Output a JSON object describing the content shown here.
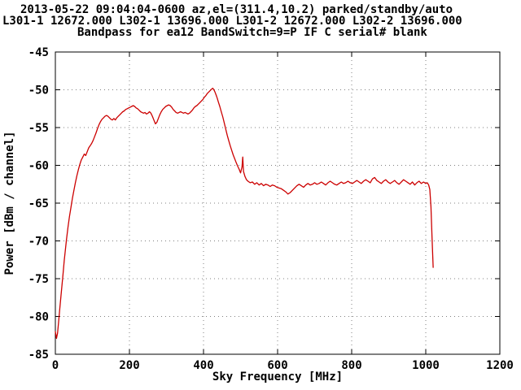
{
  "header": {
    "line1": "2013-05-22 09:04:04-0600  az,el=(311.4,10.2) parked/standby/auto",
    "line2": "L301-1 12672.000  L302-1 13696.000  L301-2 12672.000  L302-2 13696.000",
    "line3": "Bandpass for ea12  BandSwitch=9=P  IF C  serial# blank"
  },
  "chart_data": {
    "type": "line",
    "title": "Bandpass for ea12",
    "xlabel": "Sky Frequency [MHz]",
    "ylabel": "Power [dBm / channel]",
    "xlim": [
      0,
      1200
    ],
    "ylim": [
      -85,
      -45
    ],
    "xticks": [
      0,
      200,
      400,
      600,
      800,
      1000,
      1200
    ],
    "yticks": [
      -85,
      -80,
      -75,
      -70,
      -65,
      -60,
      -55,
      -50,
      -45
    ],
    "grid": true,
    "legend": "none",
    "line_color": "#cc0000",
    "points": [
      [
        0,
        -82
      ],
      [
        3,
        -82.9
      ],
      [
        6,
        -82.2
      ],
      [
        9,
        -80.6
      ],
      [
        12,
        -78.9
      ],
      [
        15,
        -77.4
      ],
      [
        18,
        -75.8
      ],
      [
        21,
        -74.2
      ],
      [
        24,
        -72.6
      ],
      [
        27,
        -71.2
      ],
      [
        30,
        -69.8
      ],
      [
        34,
        -68.2
      ],
      [
        38,
        -66.8
      ],
      [
        42,
        -65.6
      ],
      [
        46,
        -64.4
      ],
      [
        50,
        -63.3
      ],
      [
        54,
        -62.3
      ],
      [
        58,
        -61.4
      ],
      [
        62,
        -60.6
      ],
      [
        66,
        -59.9
      ],
      [
        70,
        -59.3
      ],
      [
        74,
        -58.9
      ],
      [
        78,
        -58.5
      ],
      [
        82,
        -58.7
      ],
      [
        86,
        -58.2
      ],
      [
        90,
        -57.7
      ],
      [
        94,
        -57.4
      ],
      [
        98,
        -57.1
      ],
      [
        102,
        -56.7
      ],
      [
        106,
        -56.2
      ],
      [
        110,
        -55.7
      ],
      [
        114,
        -55.1
      ],
      [
        118,
        -54.6
      ],
      [
        122,
        -54.2
      ],
      [
        126,
        -53.9
      ],
      [
        130,
        -53.7
      ],
      [
        134,
        -53.5
      ],
      [
        138,
        -53.4
      ],
      [
        142,
        -53.5
      ],
      [
        146,
        -53.7
      ],
      [
        150,
        -53.9
      ],
      [
        154,
        -54.0
      ],
      [
        158,
        -53.8
      ],
      [
        162,
        -54.0
      ],
      [
        166,
        -53.7
      ],
      [
        170,
        -53.5
      ],
      [
        174,
        -53.3
      ],
      [
        178,
        -53.1
      ],
      [
        182,
        -52.9
      ],
      [
        186,
        -52.8
      ],
      [
        190,
        -52.6
      ],
      [
        194,
        -52.5
      ],
      [
        198,
        -52.4
      ],
      [
        202,
        -52.3
      ],
      [
        206,
        -52.2
      ],
      [
        210,
        -52.1
      ],
      [
        214,
        -52.2
      ],
      [
        218,
        -52.4
      ],
      [
        222,
        -52.5
      ],
      [
        226,
        -52.7
      ],
      [
        230,
        -52.9
      ],
      [
        234,
        -53.0
      ],
      [
        238,
        -53.1
      ],
      [
        242,
        -53.0
      ],
      [
        246,
        -53.2
      ],
      [
        250,
        -53.1
      ],
      [
        254,
        -52.9
      ],
      [
        258,
        -53.1
      ],
      [
        262,
        -53.5
      ],
      [
        266,
        -54.0
      ],
      [
        270,
        -54.5
      ],
      [
        274,
        -54.3
      ],
      [
        278,
        -53.8
      ],
      [
        282,
        -53.3
      ],
      [
        286,
        -52.9
      ],
      [
        290,
        -52.6
      ],
      [
        294,
        -52.4
      ],
      [
        298,
        -52.2
      ],
      [
        302,
        -52.1
      ],
      [
        306,
        -52.0
      ],
      [
        310,
        -52.1
      ],
      [
        314,
        -52.3
      ],
      [
        318,
        -52.6
      ],
      [
        322,
        -52.8
      ],
      [
        326,
        -53.0
      ],
      [
        330,
        -53.1
      ],
      [
        334,
        -53.0
      ],
      [
        338,
        -52.9
      ],
      [
        342,
        -53.0
      ],
      [
        346,
        -53.1
      ],
      [
        350,
        -53.0
      ],
      [
        354,
        -53.1
      ],
      [
        358,
        -53.2
      ],
      [
        362,
        -53.1
      ],
      [
        366,
        -52.9
      ],
      [
        370,
        -52.7
      ],
      [
        374,
        -52.4
      ],
      [
        378,
        -52.2
      ],
      [
        382,
        -52.1
      ],
      [
        386,
        -51.9
      ],
      [
        390,
        -51.7
      ],
      [
        394,
        -51.5
      ],
      [
        398,
        -51.3
      ],
      [
        402,
        -51.0
      ],
      [
        406,
        -50.8
      ],
      [
        410,
        -50.5
      ],
      [
        414,
        -50.3
      ],
      [
        418,
        -50.1
      ],
      [
        422,
        -49.9
      ],
      [
        425,
        -49.8
      ],
      [
        428,
        -50.0
      ],
      [
        431,
        -50.3
      ],
      [
        434,
        -50.7
      ],
      [
        437,
        -51.1
      ],
      [
        440,
        -51.6
      ],
      [
        444,
        -52.2
      ],
      [
        448,
        -52.9
      ],
      [
        452,
        -53.6
      ],
      [
        456,
        -54.4
      ],
      [
        460,
        -55.2
      ],
      [
        464,
        -56.0
      ],
      [
        468,
        -56.7
      ],
      [
        472,
        -57.4
      ],
      [
        476,
        -58.0
      ],
      [
        480,
        -58.6
      ],
      [
        484,
        -59.1
      ],
      [
        488,
        -59.6
      ],
      [
        492,
        -60.1
      ],
      [
        496,
        -60.5
      ],
      [
        500,
        -61.0
      ],
      [
        504,
        -60.2
      ],
      [
        506,
        -58.9
      ],
      [
        508,
        -60.8
      ],
      [
        512,
        -61.5
      ],
      [
        516,
        -61.9
      ],
      [
        520,
        -62.1
      ],
      [
        526,
        -62.3
      ],
      [
        532,
        -62.2
      ],
      [
        538,
        -62.5
      ],
      [
        544,
        -62.3
      ],
      [
        550,
        -62.6
      ],
      [
        556,
        -62.4
      ],
      [
        562,
        -62.7
      ],
      [
        568,
        -62.5
      ],
      [
        574,
        -62.6
      ],
      [
        580,
        -62.8
      ],
      [
        586,
        -62.6
      ],
      [
        592,
        -62.7
      ],
      [
        598,
        -62.9
      ],
      [
        604,
        -63.0
      ],
      [
        610,
        -63.1
      ],
      [
        616,
        -63.3
      ],
      [
        622,
        -63.5
      ],
      [
        628,
        -63.8
      ],
      [
        634,
        -63.6
      ],
      [
        640,
        -63.3
      ],
      [
        646,
        -63.0
      ],
      [
        652,
        -62.7
      ],
      [
        658,
        -62.5
      ],
      [
        664,
        -62.7
      ],
      [
        670,
        -62.9
      ],
      [
        676,
        -62.6
      ],
      [
        682,
        -62.4
      ],
      [
        688,
        -62.6
      ],
      [
        694,
        -62.5
      ],
      [
        700,
        -62.3
      ],
      [
        706,
        -62.5
      ],
      [
        712,
        -62.4
      ],
      [
        718,
        -62.2
      ],
      [
        724,
        -62.4
      ],
      [
        730,
        -62.6
      ],
      [
        736,
        -62.3
      ],
      [
        742,
        -62.1
      ],
      [
        748,
        -62.3
      ],
      [
        754,
        -62.5
      ],
      [
        760,
        -62.6
      ],
      [
        766,
        -62.4
      ],
      [
        772,
        -62.2
      ],
      [
        778,
        -62.4
      ],
      [
        784,
        -62.3
      ],
      [
        790,
        -62.1
      ],
      [
        796,
        -62.3
      ],
      [
        802,
        -62.4
      ],
      [
        808,
        -62.2
      ],
      [
        814,
        -62.0
      ],
      [
        820,
        -62.2
      ],
      [
        826,
        -62.4
      ],
      [
        832,
        -62.1
      ],
      [
        838,
        -61.9
      ],
      [
        844,
        -62.1
      ],
      [
        850,
        -62.3
      ],
      [
        856,
        -61.8
      ],
      [
        862,
        -61.6
      ],
      [
        868,
        -62.0
      ],
      [
        874,
        -62.2
      ],
      [
        880,
        -62.4
      ],
      [
        886,
        -62.1
      ],
      [
        892,
        -61.9
      ],
      [
        898,
        -62.2
      ],
      [
        904,
        -62.4
      ],
      [
        910,
        -62.2
      ],
      [
        916,
        -62.0
      ],
      [
        922,
        -62.3
      ],
      [
        928,
        -62.5
      ],
      [
        934,
        -62.2
      ],
      [
        940,
        -61.9
      ],
      [
        946,
        -62.1
      ],
      [
        952,
        -62.3
      ],
      [
        958,
        -62.5
      ],
      [
        964,
        -62.2
      ],
      [
        970,
        -62.6
      ],
      [
        976,
        -62.3
      ],
      [
        982,
        -62.1
      ],
      [
        988,
        -62.4
      ],
      [
        994,
        -62.2
      ],
      [
        1000,
        -62.4
      ],
      [
        1004,
        -62.3
      ],
      [
        1008,
        -62.6
      ],
      [
        1011,
        -63.2
      ],
      [
        1014,
        -65.5
      ],
      [
        1017,
        -69.5
      ],
      [
        1020,
        -73.5
      ]
    ]
  }
}
